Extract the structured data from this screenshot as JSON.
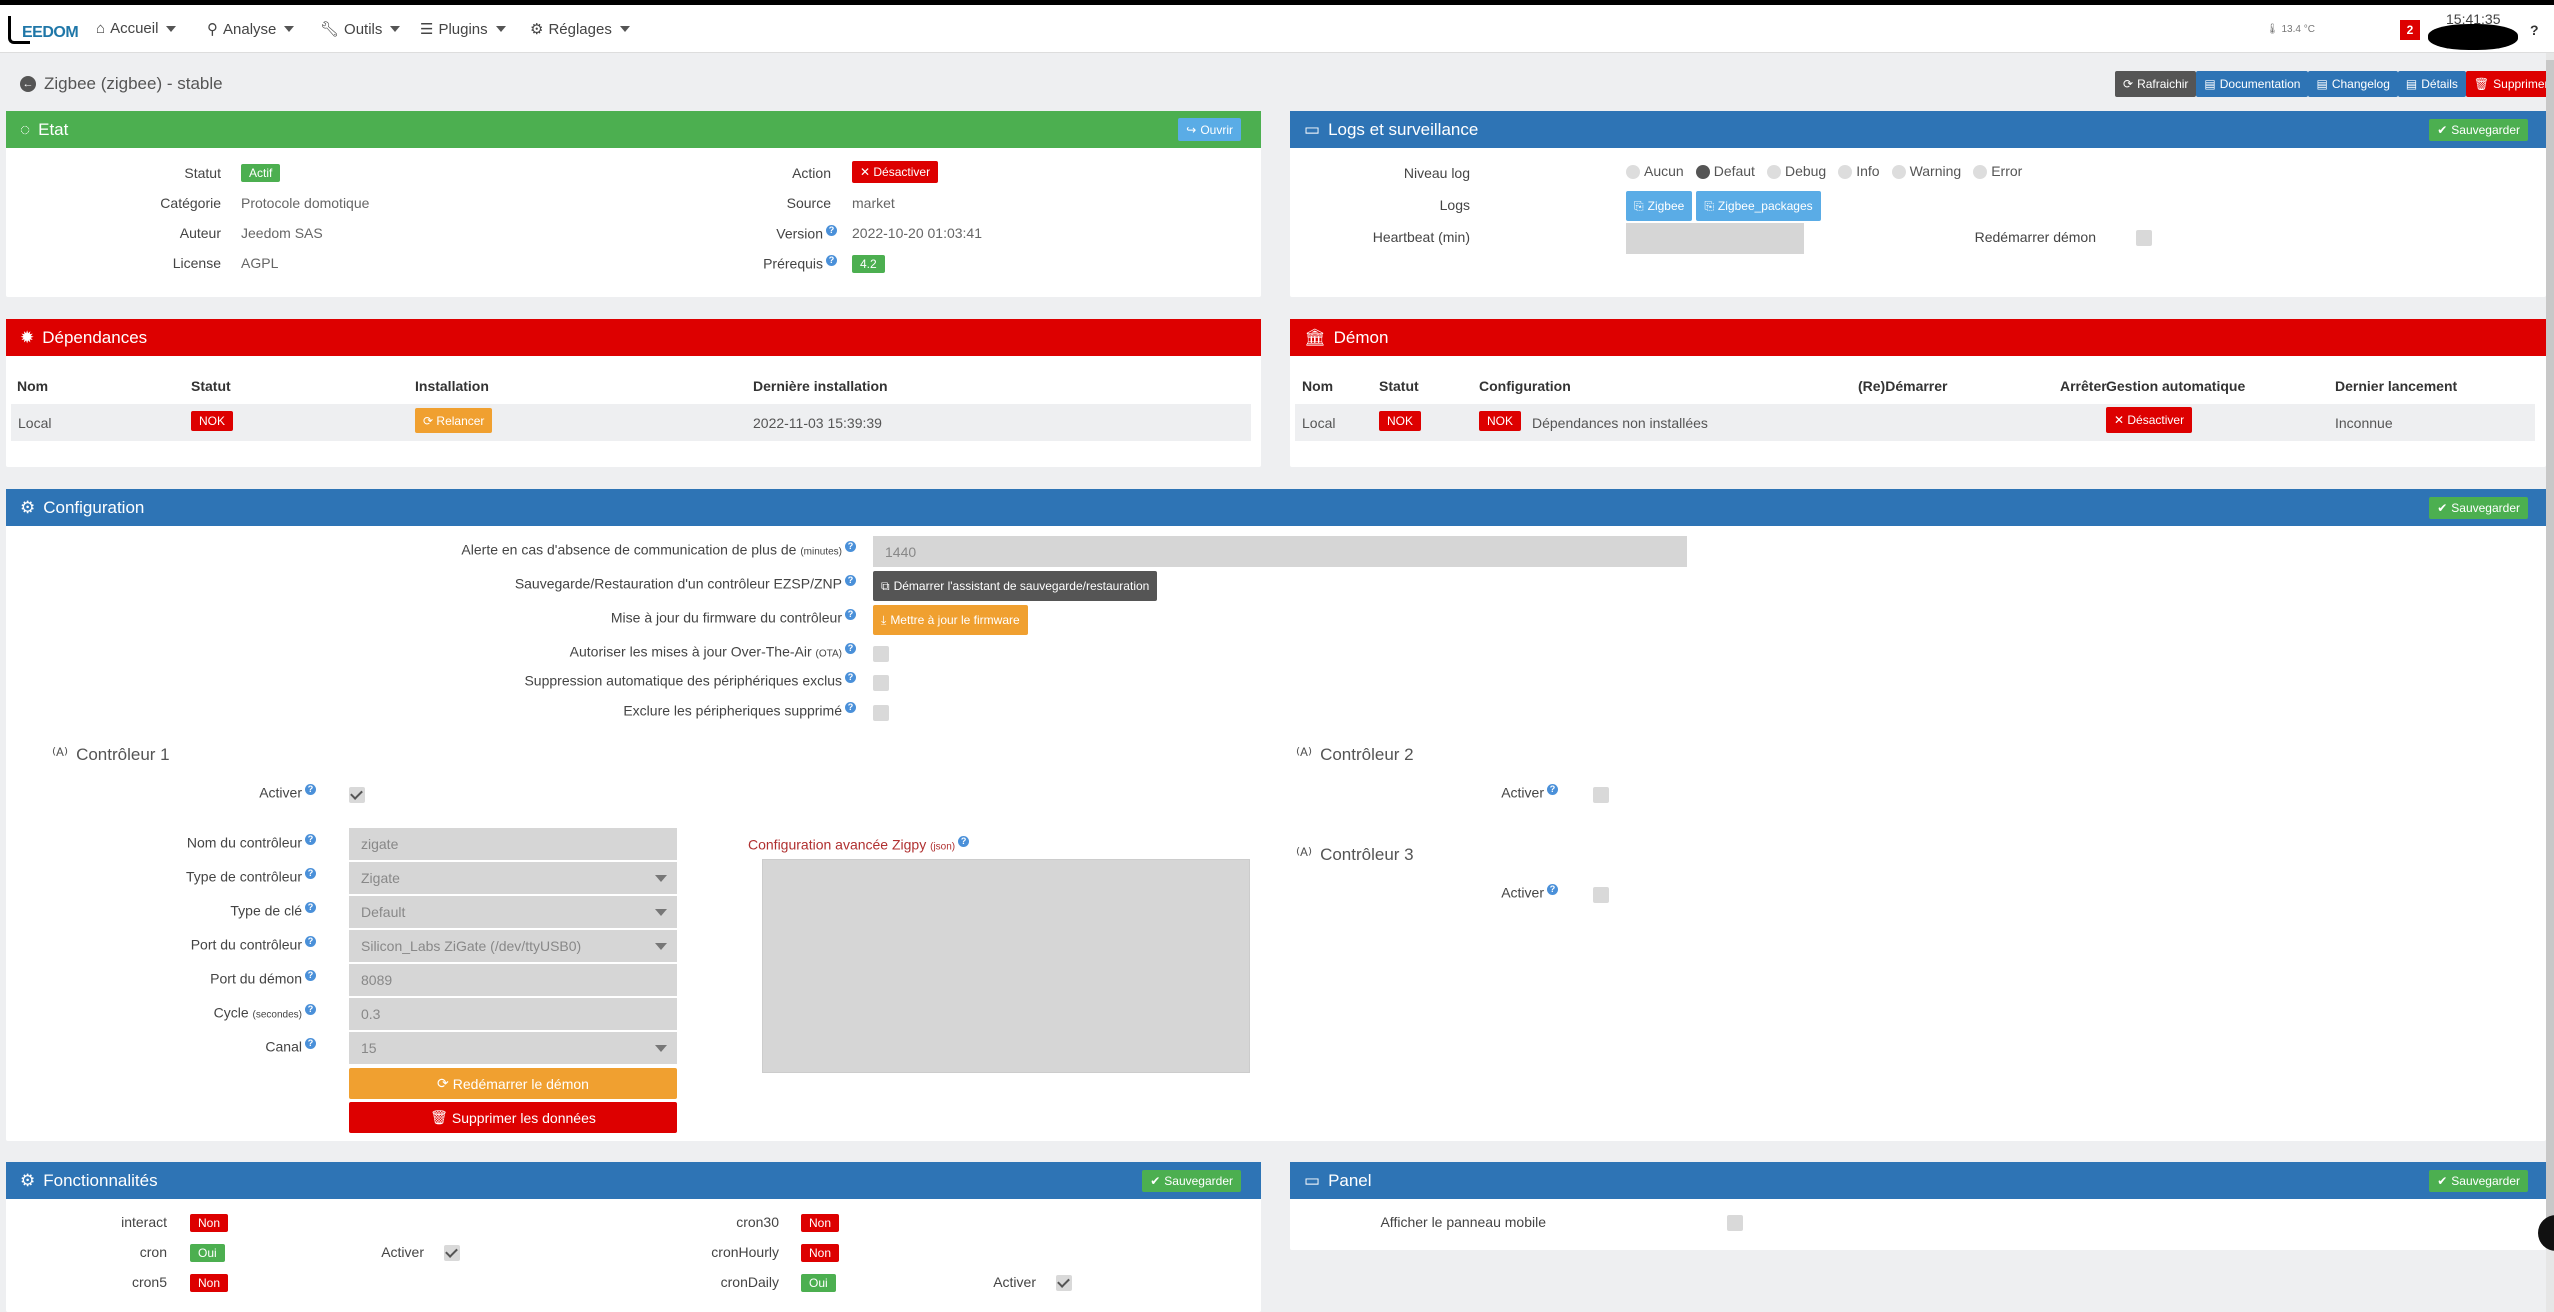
{
  "nav": {
    "logo": "EEDOM",
    "menu": [
      "Accueil",
      "Analyse",
      "Outils",
      "Plugins",
      "Réglages"
    ],
    "temperature": "13.4 °C",
    "notif_count": "2",
    "time": "15:41:35",
    "help": "?"
  },
  "page": {
    "title": "Zigbee (zigbee) - stable",
    "buttons": {
      "refresh": "Rafraichir",
      "doc": "Documentation",
      "changelog": "Changelog",
      "details": "Détails",
      "delete": "Supprimer"
    }
  },
  "etat": {
    "title": "Etat",
    "open": "Ouvrir",
    "statut_label": "Statut",
    "statut": "Actif",
    "categorie_label": "Catégorie",
    "categorie": "Protocole domotique",
    "auteur_label": "Auteur",
    "auteur": "Jeedom SAS",
    "license_label": "License",
    "license": "AGPL",
    "action_label": "Action",
    "action": "Désactiver",
    "source_label": "Source",
    "source": "market",
    "version_label": "Version",
    "version": "2022-10-20 01:03:41",
    "prerequis_label": "Prérequis",
    "prerequis": "4.2"
  },
  "logs": {
    "title": "Logs et surveillance",
    "save": "Sauvegarder",
    "niveau_label": "Niveau log",
    "levels": [
      "Aucun",
      "Defaut",
      "Debug",
      "Info",
      "Warning",
      "Error"
    ],
    "selected_level": "Defaut",
    "logs_label": "Logs",
    "log_buttons": [
      "Zigbee",
      "Zigbee_packages"
    ],
    "heartbeat_label": "Heartbeat (min)",
    "restart_label": "Redémarrer démon"
  },
  "deps": {
    "title": "Dépendances",
    "headers": [
      "Nom",
      "Statut",
      "Installation",
      "Dernière installation"
    ],
    "row": {
      "nom": "Local",
      "statut": "NOK",
      "install": "Relancer",
      "date": "2022-11-03 15:39:39"
    }
  },
  "demon": {
    "title": "Démon",
    "headers": [
      "Nom",
      "Statut",
      "Configuration",
      "(Re)Démarrer",
      "Arrêter",
      "Gestion automatique",
      "Dernier lancement"
    ],
    "row": {
      "nom": "Local",
      "statut": "NOK",
      "config_badge": "NOK",
      "config_text": "Dépendances non installées",
      "gestion": "Désactiver",
      "dernier": "Inconnue"
    }
  },
  "config": {
    "title": "Configuration",
    "save": "Sauvegarder",
    "alerte_label": "Alerte en cas d'absence de communication de plus de",
    "alerte_unit": "(minutes)",
    "alerte_value": "1440",
    "backup_label": "Sauvegarde/Restauration d'un contrôleur EZSP/ZNP",
    "backup_btn": "Démarrer l'assistant de sauvegarde/restauration",
    "firmware_label": "Mise à jour du firmware du contrôleur",
    "firmware_btn": "Mettre à jour le firmware",
    "ota_label": "Autoriser les mises à jour Over-The-Air",
    "ota_unit": "(OTA)",
    "suppr_label": "Suppression automatique des périphériques exclus",
    "exclude_label": "Exclure les péripheriques supprimé",
    "c1_title": "Contrôleur 1",
    "activer": "Activer",
    "nom_label": "Nom du contrôleur",
    "nom": "zigate",
    "type_label": "Type de contrôleur",
    "type": "Zigate",
    "cle_label": "Type de clé",
    "cle": "Default",
    "port_label": "Port du contrôleur",
    "port": "Silicon_Labs ZiGate (/dev/ttyUSB0)",
    "demon_port_label": "Port du démon",
    "demon_port": "8089",
    "cycle_label": "Cycle",
    "cycle_unit": "(secondes)",
    "cycle": "0.3",
    "canal_label": "Canal",
    "canal": "15",
    "restart_btn": "Redémarrer le démon",
    "delete_btn": "Supprimer les données",
    "adv_label": "Configuration avancée Zigpy",
    "adv_unit": "(json)",
    "c2_title": "Contrôleur 2",
    "c3_title": "Contrôleur 3"
  },
  "fonc": {
    "title": "Fonctionnalités",
    "save": "Sauvegarder",
    "left": [
      {
        "name": "interact",
        "val": "Non"
      },
      {
        "name": "cron",
        "val": "Oui"
      },
      {
        "name": "cron5",
        "val": "Non"
      }
    ],
    "right": [
      {
        "name": "cron30",
        "val": "Non"
      },
      {
        "name": "cronHourly",
        "val": "Non"
      },
      {
        "name": "cronDaily",
        "val": "Oui"
      }
    ],
    "activer": "Activer"
  },
  "panel": {
    "title": "Panel",
    "save": "Sauvegarder",
    "mobile_label": "Afficher le panneau mobile"
  }
}
